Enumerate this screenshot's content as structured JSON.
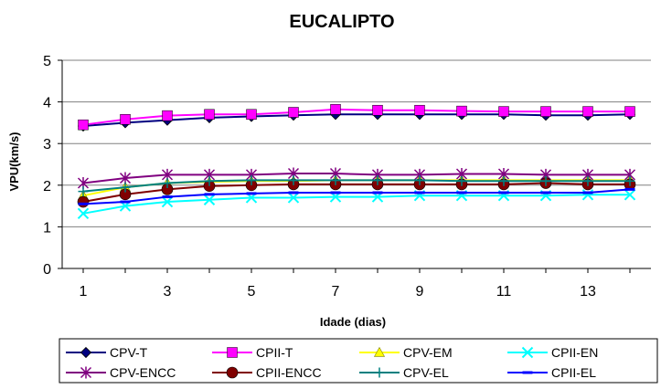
{
  "chart_data": {
    "type": "line",
    "title": "EUCALIPTO",
    "xlabel": "Idade (dias)",
    "ylabel": "VPU(km/s)",
    "x": [
      1,
      2,
      3,
      4,
      5,
      6,
      7,
      8,
      9,
      10,
      11,
      12,
      13,
      14
    ],
    "xticks": [
      "1",
      "3",
      "5",
      "7",
      "9",
      "11",
      "13"
    ],
    "xlim": [
      1,
      14
    ],
    "ylim": [
      0,
      5
    ],
    "yticks": [
      "0",
      "1",
      "2",
      "3",
      "4",
      "5"
    ],
    "grid": true,
    "legend_position": "bottom",
    "series": [
      {
        "name": "CPV-T",
        "color": "#000080",
        "marker": "diamond",
        "values": [
          3.42,
          3.5,
          3.56,
          3.62,
          3.65,
          3.68,
          3.7,
          3.7,
          3.7,
          3.7,
          3.7,
          3.68,
          3.68,
          3.7
        ]
      },
      {
        "name": "CPII-T",
        "color": "#ff00ff",
        "marker": "square",
        "values": [
          3.45,
          3.58,
          3.67,
          3.7,
          3.7,
          3.75,
          3.82,
          3.8,
          3.8,
          3.78,
          3.77,
          3.77,
          3.77,
          3.77
        ]
      },
      {
        "name": "CPV-EM",
        "color": "#ffff00",
        "marker": "triangle",
        "values": [
          1.75,
          1.95,
          2.05,
          2.08,
          2.1,
          2.1,
          2.12,
          2.12,
          2.12,
          2.12,
          2.12,
          2.12,
          2.12,
          2.12
        ]
      },
      {
        "name": "CPII-EN",
        "color": "#00ffff",
        "marker": "x",
        "values": [
          1.32,
          1.5,
          1.6,
          1.65,
          1.7,
          1.7,
          1.72,
          1.72,
          1.75,
          1.75,
          1.75,
          1.75,
          1.77,
          1.77
        ]
      },
      {
        "name": "CPV-ENCC",
        "color": "#800080",
        "marker": "star",
        "values": [
          2.05,
          2.17,
          2.25,
          2.25,
          2.25,
          2.28,
          2.28,
          2.25,
          2.25,
          2.27,
          2.27,
          2.25,
          2.25,
          2.25
        ]
      },
      {
        "name": "CPII-ENCC",
        "color": "#800000",
        "marker": "circle",
        "values": [
          1.6,
          1.78,
          1.9,
          1.98,
          2.0,
          2.02,
          2.02,
          2.02,
          2.02,
          2.02,
          2.02,
          2.05,
          2.02,
          2.02
        ]
      },
      {
        "name": "CPV-EL",
        "color": "#008080",
        "marker": "plus",
        "values": [
          1.85,
          1.95,
          2.05,
          2.1,
          2.12,
          2.12,
          2.12,
          2.12,
          2.12,
          2.1,
          2.1,
          2.1,
          2.1,
          2.1
        ]
      },
      {
        "name": "CPII-EL",
        "color": "#0000ff",
        "marker": "dash",
        "values": [
          1.55,
          1.6,
          1.72,
          1.78,
          1.8,
          1.82,
          1.82,
          1.82,
          1.82,
          1.82,
          1.82,
          1.82,
          1.82,
          1.9
        ]
      }
    ]
  }
}
